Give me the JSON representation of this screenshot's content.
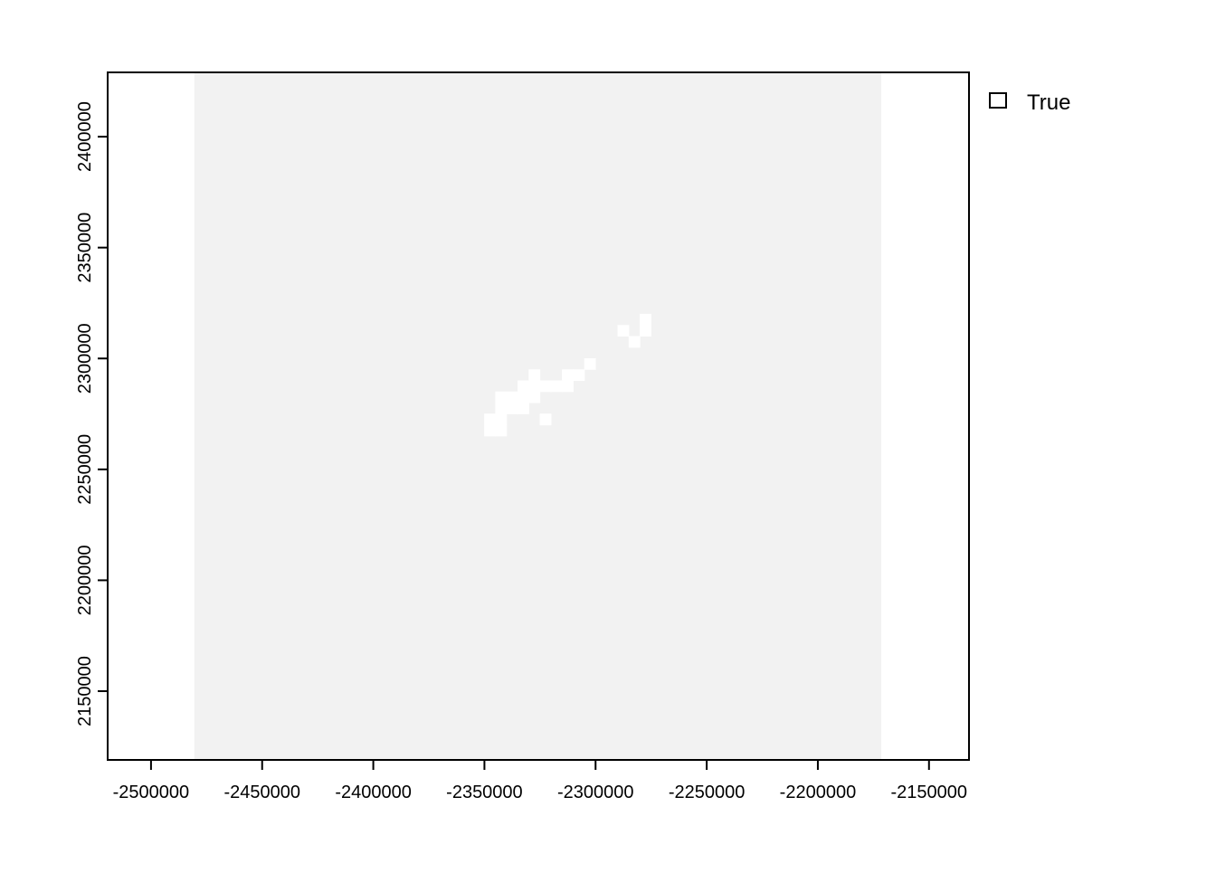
{
  "chart_data": {
    "type": "heatmap",
    "title": "",
    "xlabel": "",
    "ylabel": "",
    "xlim": [
      -2519500,
      -2132000
    ],
    "ylim": [
      2119000,
      2429000
    ],
    "x_ticks": [
      -2500000,
      -2450000,
      -2400000,
      -2350000,
      -2300000,
      -2250000,
      -2200000,
      -2150000
    ],
    "y_ticks": [
      2150000,
      2200000,
      2250000,
      2300000,
      2350000,
      2400000
    ],
    "x_tick_labels": [
      "-2500000",
      "-2450000",
      "-2400000",
      "-2350000",
      "-2300000",
      "-2250000",
      "-2200000",
      "-2150000"
    ],
    "y_tick_labels": [
      "2150000",
      "2200000",
      "2250000",
      "2300000",
      "2350000",
      "2400000"
    ],
    "raster_extent": {
      "xmin": -2480500,
      "xmax": -2171500,
      "ymin": 2119000,
      "ymax": 2429000
    },
    "cell_size": 5000,
    "background_value": "True",
    "colors": {
      "raster_fill": "#f2f2f2",
      "gap_cells": "#ffffff",
      "axis": "#000000",
      "legend_box": "#ffffff"
    },
    "grid": false,
    "legend": {
      "placement": "right",
      "entries": [
        {
          "label": "True",
          "color": "#ffffff"
        }
      ]
    },
    "gap_cells": [
      [
        -2347500,
        2267500
      ],
      [
        -2342500,
        2267500
      ],
      [
        -2347500,
        2272500
      ],
      [
        -2342500,
        2272500
      ],
      [
        -2342500,
        2277500
      ],
      [
        -2337500,
        2277500
      ],
      [
        -2332500,
        2277500
      ],
      [
        -2342500,
        2282500
      ],
      [
        -2337500,
        2282500
      ],
      [
        -2332500,
        2282500
      ],
      [
        -2327500,
        2282500
      ],
      [
        -2332500,
        2287500
      ],
      [
        -2327500,
        2287500
      ],
      [
        -2322500,
        2287500
      ],
      [
        -2317500,
        2287500
      ],
      [
        -2312500,
        2287500
      ],
      [
        -2327500,
        2292500
      ],
      [
        -2312500,
        2292500
      ],
      [
        -2307500,
        2292500
      ],
      [
        -2302500,
        2297500
      ],
      [
        -2322500,
        2272500
      ],
      [
        -2287500,
        2312500
      ],
      [
        -2277500,
        2312500
      ],
      [
        -2282500,
        2307500
      ],
      [
        -2277500,
        2317500
      ]
    ]
  }
}
